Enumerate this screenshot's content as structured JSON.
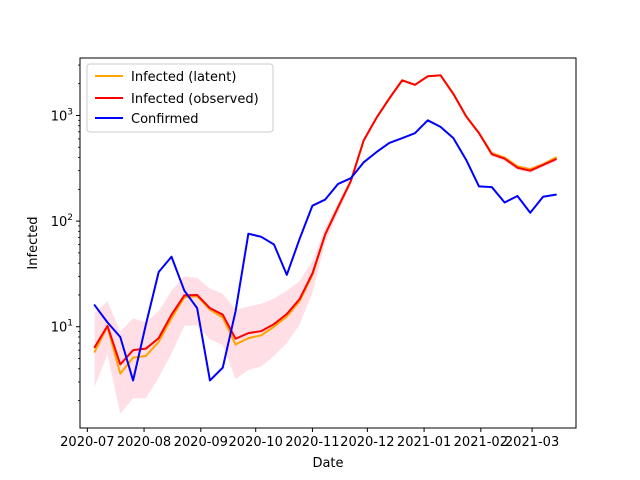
{
  "chart_data": {
    "type": "line",
    "title": "",
    "xlabel": "Date",
    "ylabel": "Infected",
    "yscale": "log",
    "ylim": [
      1.1,
      3500
    ],
    "xlim": [
      "2020-06-27",
      "2021-03-25"
    ],
    "grid": false,
    "legend_position": "top-left",
    "x_ticks": [
      {
        "date": "2020-07-01",
        "label": "2020-07"
      },
      {
        "date": "2020-08-01",
        "label": "2020-08"
      },
      {
        "date": "2020-09-01",
        "label": "2020-09"
      },
      {
        "date": "2020-10-01",
        "label": "2020-10"
      },
      {
        "date": "2020-11-01",
        "label": "2020-11"
      },
      {
        "date": "2020-12-01",
        "label": "2020-12"
      },
      {
        "date": "2021-01-01",
        "label": "2021-01"
      },
      {
        "date": "2021-02-01",
        "label": "2021-02"
      },
      {
        "date": "2021-03-01",
        "label": "2021-03"
      }
    ],
    "y_ticks": [
      {
        "value": 10,
        "base": "10",
        "exp": "1"
      },
      {
        "value": 100,
        "base": "10",
        "exp": "2"
      },
      {
        "value": 1000,
        "base": "10",
        "exp": "3"
      }
    ],
    "band_color": "#ffc0cb",
    "series": [
      {
        "name": "Infected (latent)",
        "color": "#ffa500",
        "points": [
          [
            "2020-07-05",
            5.8
          ],
          [
            "2020-07-12",
            10.0
          ],
          [
            "2020-07-19",
            3.6
          ],
          [
            "2020-07-26",
            5.1
          ],
          [
            "2020-08-02",
            5.3
          ],
          [
            "2020-08-09",
            7.2
          ],
          [
            "2020-08-16",
            12.0
          ],
          [
            "2020-08-23",
            19.0
          ],
          [
            "2020-08-30",
            19.5
          ],
          [
            "2020-09-06",
            14.5
          ],
          [
            "2020-09-13",
            12.2
          ],
          [
            "2020-09-20",
            6.8
          ],
          [
            "2020-09-27",
            7.8
          ],
          [
            "2020-10-04",
            8.3
          ],
          [
            "2020-10-11",
            10.0
          ],
          [
            "2020-10-18",
            12.5
          ],
          [
            "2020-10-25",
            17.5
          ],
          [
            "2020-11-01",
            31.0
          ],
          [
            "2020-11-08",
            75.0
          ],
          [
            "2020-11-15",
            135.0
          ],
          [
            "2020-11-22",
            240.0
          ],
          [
            "2020-11-29",
            580.0
          ],
          [
            "2020-12-06",
            950.0
          ],
          [
            "2020-12-13",
            1450.0
          ],
          [
            "2020-12-20",
            2150.0
          ],
          [
            "2020-12-27",
            1950.0
          ],
          [
            "2021-01-03",
            2350.0
          ],
          [
            "2021-01-10",
            2400.0
          ],
          [
            "2021-01-17",
            1600.0
          ],
          [
            "2021-01-24",
            980.0
          ],
          [
            "2021-01-31",
            680.0
          ],
          [
            "2021-02-07",
            440.0
          ],
          [
            "2021-02-14",
            400.0
          ],
          [
            "2021-02-21",
            330.0
          ],
          [
            "2021-02-28",
            310.0
          ],
          [
            "2021-03-07",
            345.0
          ],
          [
            "2021-03-14",
            400.0
          ]
        ]
      },
      {
        "name": "Infected (observed)",
        "color": "#ff0000",
        "points": [
          [
            "2020-07-05",
            6.4
          ],
          [
            "2020-07-12",
            10.2
          ],
          [
            "2020-07-19",
            4.4
          ],
          [
            "2020-07-26",
            6.0
          ],
          [
            "2020-08-02",
            6.2
          ],
          [
            "2020-08-09",
            7.8
          ],
          [
            "2020-08-16",
            13.0
          ],
          [
            "2020-08-23",
            19.8
          ],
          [
            "2020-08-30",
            20.0
          ],
          [
            "2020-09-06",
            15.0
          ],
          [
            "2020-09-13",
            13.0
          ],
          [
            "2020-09-20",
            7.7
          ],
          [
            "2020-09-27",
            8.7
          ],
          [
            "2020-10-04",
            9.1
          ],
          [
            "2020-10-11",
            10.6
          ],
          [
            "2020-10-18",
            13.2
          ],
          [
            "2020-10-25",
            18.3
          ],
          [
            "2020-11-01",
            32.0
          ],
          [
            "2020-11-08",
            75.0
          ],
          [
            "2020-11-15",
            135.0
          ],
          [
            "2020-11-22",
            240.0
          ],
          [
            "2020-11-29",
            580.0
          ],
          [
            "2020-12-06",
            950.0
          ],
          [
            "2020-12-13",
            1450.0
          ],
          [
            "2020-12-20",
            2150.0
          ],
          [
            "2020-12-27",
            1950.0
          ],
          [
            "2021-01-03",
            2350.0
          ],
          [
            "2021-01-10",
            2400.0
          ],
          [
            "2021-01-17",
            1600.0
          ],
          [
            "2021-01-24",
            980.0
          ],
          [
            "2021-01-31",
            680.0
          ],
          [
            "2021-02-07",
            430.0
          ],
          [
            "2021-02-14",
            390.0
          ],
          [
            "2021-02-21",
            320.0
          ],
          [
            "2021-02-28",
            300.0
          ],
          [
            "2021-03-07",
            340.0
          ],
          [
            "2021-03-14",
            385.0
          ]
        ]
      },
      {
        "name": "Confirmed",
        "color": "#0000ff",
        "points": [
          [
            "2020-07-05",
            16.0
          ],
          [
            "2020-07-12",
            11.0
          ],
          [
            "2020-07-19",
            8.0
          ],
          [
            "2020-07-26",
            3.1
          ],
          [
            "2020-08-02",
            10.5
          ],
          [
            "2020-08-09",
            33.0
          ],
          [
            "2020-08-16",
            46.0
          ],
          [
            "2020-08-23",
            22.0
          ],
          [
            "2020-08-30",
            15.0
          ],
          [
            "2020-09-06",
            3.1
          ],
          [
            "2020-09-13",
            4.1
          ],
          [
            "2020-09-20",
            14.0
          ],
          [
            "2020-09-27",
            76.0
          ],
          [
            "2020-10-04",
            71.0
          ],
          [
            "2020-10-11",
            60.0
          ],
          [
            "2020-10-18",
            31.0
          ],
          [
            "2020-10-25",
            68.0
          ],
          [
            "2020-11-01",
            140.0
          ],
          [
            "2020-11-08",
            160.0
          ],
          [
            "2020-11-15",
            225.0
          ],
          [
            "2020-11-22",
            255.0
          ],
          [
            "2020-11-29",
            360.0
          ],
          [
            "2020-12-06",
            450.0
          ],
          [
            "2020-12-13",
            550.0
          ],
          [
            "2020-12-20",
            610.0
          ],
          [
            "2020-12-27",
            680.0
          ],
          [
            "2021-01-03",
            900.0
          ],
          [
            "2021-01-10",
            780.0
          ],
          [
            "2021-01-17",
            610.0
          ],
          [
            "2021-01-24",
            380.0
          ],
          [
            "2021-01-31",
            213.0
          ],
          [
            "2021-02-07",
            210.0
          ],
          [
            "2021-02-14",
            150.0
          ],
          [
            "2021-02-21",
            173.0
          ],
          [
            "2021-02-28",
            120.0
          ],
          [
            "2021-03-07",
            170.0
          ],
          [
            "2021-03-14",
            178.0
          ]
        ]
      }
    ],
    "confidence_band": {
      "series": "Infected (observed)",
      "lower": [
        2.7,
        5.5,
        1.5,
        2.1,
        2.1,
        3.3,
        5.6,
        10.2,
        10.3,
        7.6,
        6.7,
        3.2,
        3.9,
        4.2,
        5.3,
        7.0,
        10.5,
        21.0,
        62.0,
        120.0,
        225.0,
        560.0,
        920.0,
        1420.0,
        2100.0,
        1900.0,
        2300.0,
        2350.0,
        1560.0,
        950.0,
        650.0,
        410.0,
        370.0,
        305.0,
        285.0,
        325.0,
        365.0
      ],
      "upper": [
        13.5,
        17.5,
        9.0,
        12.0,
        11.0,
        14.0,
        22.0,
        30.0,
        29.0,
        23.0,
        20.5,
        14.5,
        15.5,
        16.5,
        18.5,
        22.0,
        27.0,
        42.0,
        86.0,
        150.0,
        255.0,
        600.0,
        980.0,
        1490.0,
        2200.0,
        2000.0,
        2400.0,
        2450.0,
        1650.0,
        1010.0,
        710.0,
        455.0,
        410.0,
        340.0,
        320.0,
        360.0,
        410.0
      ]
    }
  }
}
